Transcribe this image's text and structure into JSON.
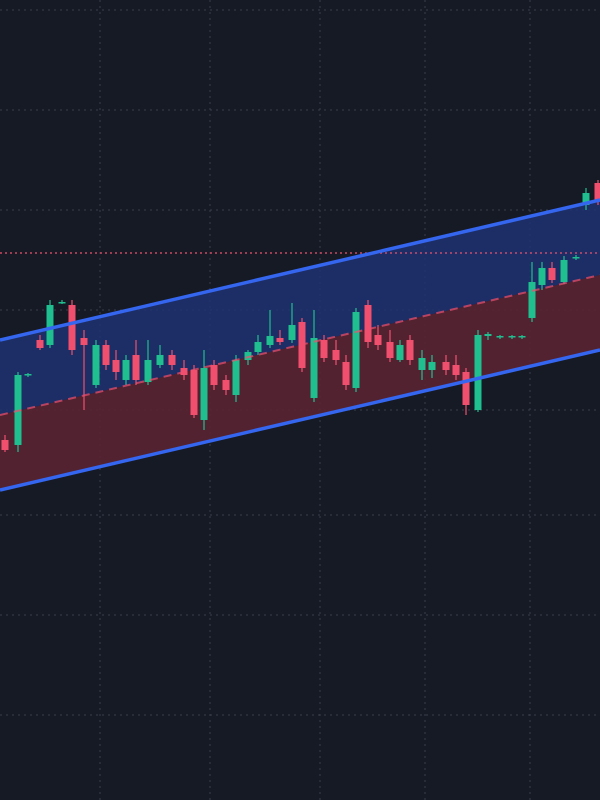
{
  "chart_data": {
    "type": "candlestick",
    "background": "#161a25",
    "grid": true,
    "grid_color": "#3a3f4c",
    "xlim": [
      0,
      60
    ],
    "ylim": [
      0,
      800
    ],
    "xticks": [
      10,
      21,
      32,
      42.5,
      53
    ],
    "yticks": [
      85,
      185,
      285,
      390,
      490,
      590,
      690,
      790
    ],
    "up_color": "#1fbf8f",
    "down_color": "#f0506e",
    "categories": [
      null,
      null,
      null,
      null,
      null,
      null,
      null,
      null,
      null,
      null,
      null,
      null,
      null,
      null,
      null,
      null,
      null,
      null,
      null,
      null,
      null,
      null,
      null,
      null,
      null,
      null,
      null,
      null,
      null,
      null,
      null,
      null,
      null,
      null,
      null,
      null,
      null,
      null,
      null,
      null,
      null,
      null,
      null,
      null,
      null,
      null,
      null,
      null,
      null,
      null,
      null,
      null,
      null,
      null,
      null
    ],
    "x": [
      0.5,
      1.8,
      2.8,
      4.0,
      5.0,
      6.2,
      7.2,
      8.4,
      9.6,
      10.6,
      11.6,
      12.6,
      13.6,
      14.8,
      16.0,
      17.2,
      18.4,
      19.4,
      20.4,
      21.4,
      22.6,
      23.6,
      24.8,
      25.8,
      27.0,
      28.0,
      29.2,
      30.2,
      31.4,
      32.4,
      33.6,
      34.6,
      35.6,
      36.8,
      37.8,
      39.0,
      40.0,
      41.0,
      42.2,
      43.2,
      44.6,
      45.6,
      46.6,
      47.8,
      48.8,
      50.0,
      51.2,
      52.2,
      53.2,
      54.2,
      55.2,
      56.4,
      57.6,
      58.6,
      59.8
    ],
    "open": [
      360,
      355,
      425,
      460,
      455,
      497,
      495,
      462,
      415,
      455,
      440,
      420,
      445,
      418,
      435,
      445,
      432,
      430,
      380,
      435,
      420,
      405,
      440,
      448,
      455,
      462,
      460,
      478,
      402,
      460,
      450,
      438,
      412,
      495,
      465,
      458,
      440,
      460,
      430,
      430,
      438,
      435,
      428,
      390,
      464,
      463,
      463,
      463,
      482,
      515,
      532,
      518,
      542,
      595,
      617
    ],
    "high": [
      365,
      428,
      427,
      465,
      500,
      500,
      500,
      470,
      460,
      460,
      450,
      445,
      460,
      460,
      455,
      450,
      440,
      435,
      450,
      440,
      425,
      445,
      450,
      465,
      490,
      470,
      497,
      482,
      490,
      465,
      460,
      445,
      492,
      500,
      475,
      470,
      460,
      465,
      450,
      445,
      445,
      445,
      432,
      470,
      468,
      465,
      465,
      465,
      538,
      538,
      538,
      544,
      545,
      612,
      620
    ],
    "low": [
      348,
      348,
      423,
      450,
      452,
      496,
      445,
      390,
      412,
      430,
      420,
      415,
      415,
      415,
      432,
      430,
      420,
      382,
      370,
      410,
      405,
      398,
      435,
      445,
      452,
      455,
      457,
      428,
      398,
      438,
      435,
      410,
      408,
      452,
      450,
      438,
      438,
      435,
      420,
      422,
      425,
      420,
      385,
      388,
      460,
      461,
      461,
      461,
      478,
      510,
      517,
      516,
      540,
      590,
      595
    ],
    "close": [
      350,
      425,
      426,
      452,
      495,
      498,
      450,
      455,
      455,
      435,
      428,
      440,
      420,
      440,
      445,
      435,
      425,
      385,
      432,
      415,
      410,
      440,
      448,
      458,
      464,
      458,
      475,
      432,
      462,
      442,
      440,
      415,
      488,
      458,
      455,
      442,
      455,
      440,
      442,
      438,
      430,
      425,
      395,
      465,
      466,
      464,
      464,
      464,
      518,
      532,
      520,
      540,
      543,
      607,
      600
    ],
    "channel": {
      "x": [
        0,
        60
      ],
      "upper": [
        460,
        600
      ],
      "middle": [
        385,
        525
      ],
      "lower": [
        310,
        450
      ],
      "color": "#3466f0",
      "upper_fill": "#1f3272",
      "lower_fill": "#5a2433"
    },
    "price_line": {
      "value": 547,
      "color": "#f0506e"
    }
  }
}
